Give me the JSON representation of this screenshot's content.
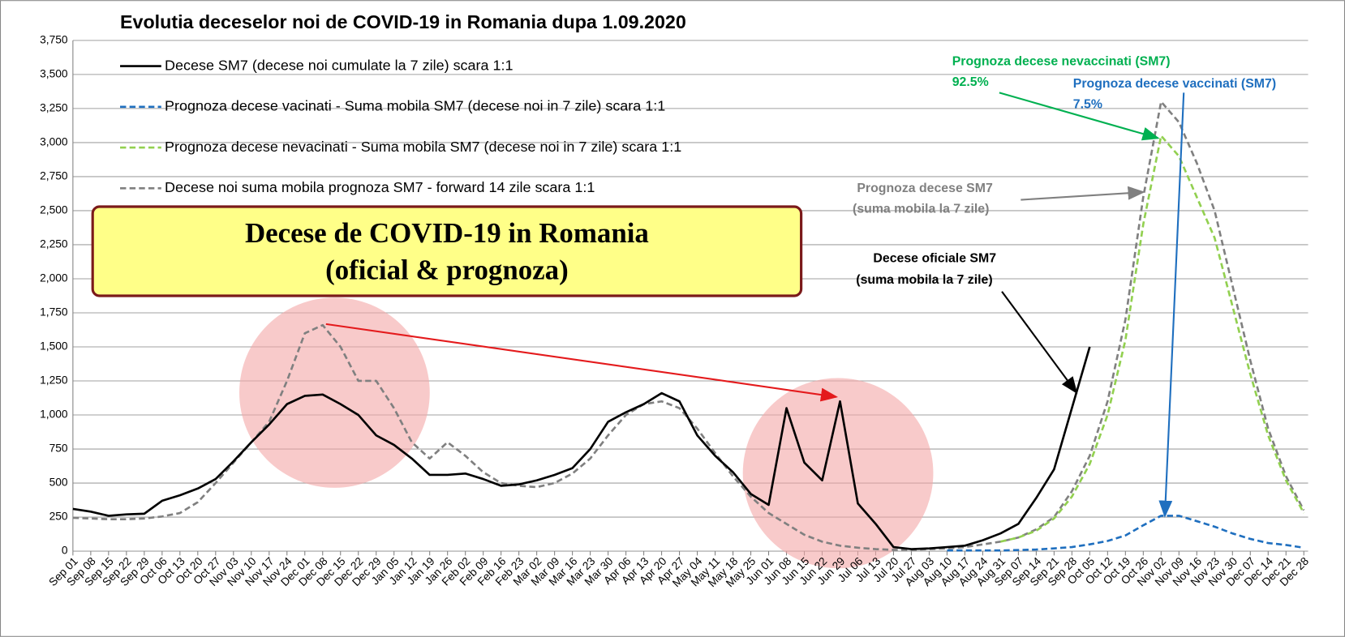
{
  "chart_data": {
    "type": "line",
    "title": "Evolutia deceselor noi de COVID-19 in Romania dupa 1.09.2020",
    "box_text": [
      "Decese de COVID-19 in Romania",
      "(oficial & prognoza)"
    ],
    "annotations": [
      "Prognoza decese nevaccinati (SM7)",
      "92.5%",
      "Prognoza decese vaccinati (SM7)",
      "7.5%",
      "Prognoza decese SM7",
      "(suma mobila la 7 zile)",
      "Decese oficiale SM7",
      "(suma mobila la 7 zile)"
    ],
    "categories": [
      "Sep 01",
      "Sep 08",
      "Sep 15",
      "Sep 22",
      "Sep 29",
      "Oct 06",
      "Oct 13",
      "Oct 20",
      "Oct 27",
      "Nov 03",
      "Nov 10",
      "Nov 17",
      "Nov 24",
      "Dec 01",
      "Dec 08",
      "Dec 15",
      "Dec 22",
      "Dec 29",
      "Jan 05",
      "Jan 12",
      "Jan 19",
      "Jan 26",
      "Feb 02",
      "Feb 09",
      "Feb 16",
      "Feb 23",
      "Mar 02",
      "Mar 09",
      "Mar 16",
      "Mar 23",
      "Mar 30",
      "Apr 06",
      "Apr 13",
      "Apr 20",
      "Apr 27",
      "May 04",
      "May 11",
      "May 18",
      "May 25",
      "Jun 01",
      "Jun 08",
      "Jun 15",
      "Jun 22",
      "Jun 29",
      "Jul 06",
      "Jul 13",
      "Jul 20",
      "Jul 27",
      "Aug 03",
      "Aug 10",
      "Aug 17",
      "Aug 24",
      "Aug 31",
      "Sep 07",
      "Sep 14",
      "Sep 21",
      "Sep 28",
      "Oct 05",
      "Oct 12",
      "Oct 19",
      "Oct 26",
      "Nov 02",
      "Nov 09",
      "Nov 16",
      "Nov 23",
      "Nov 30",
      "Dec 07",
      "Dec 14",
      "Dec 21",
      "Dec 28"
    ],
    "series": [
      {
        "name": "Decese SM7 (decese noi cumulate la 7 zile) scara 1:1",
        "color": "#000000",
        "dash": false,
        "values": [
          310,
          290,
          260,
          270,
          275,
          370,
          410,
          460,
          530,
          660,
          800,
          930,
          1080,
          1140,
          1150,
          1080,
          1000,
          850,
          780,
          680,
          560,
          560,
          570,
          530,
          480,
          490,
          520,
          560,
          610,
          750,
          950,
          1020,
          1080,
          1160,
          1100,
          850,
          700,
          580,
          420,
          340,
          1050,
          650,
          520,
          1100,
          350,
          200,
          30,
          15,
          20,
          30,
          40,
          80,
          130,
          200,
          390,
          600,
          1050,
          1500,
          null,
          null,
          null,
          null,
          null,
          null,
          null,
          null,
          null,
          null,
          null,
          null
        ]
      },
      {
        "name": "Prognoza decese vacinati - Suma mobila SM7 (decese noi in 7 zile) scara 1:1",
        "color": "#1f6fbf",
        "dash": true,
        "values": [
          null,
          null,
          null,
          null,
          null,
          null,
          null,
          null,
          null,
          null,
          null,
          null,
          null,
          null,
          null,
          null,
          null,
          null,
          null,
          null,
          null,
          null,
          null,
          null,
          null,
          null,
          null,
          null,
          null,
          null,
          null,
          null,
          null,
          null,
          null,
          null,
          null,
          null,
          null,
          null,
          null,
          null,
          null,
          null,
          null,
          null,
          null,
          null,
          null,
          5,
          5,
          5,
          5,
          8,
          12,
          20,
          30,
          50,
          75,
          115,
          190,
          260,
          260,
          220,
          180,
          130,
          90,
          60,
          45,
          25
        ]
      },
      {
        "name": "Prognoza decese nevacinati - Suma mobila SM7 (decese noi in 7 zile) scara 1:1",
        "color": "#92d050",
        "dash": true,
        "values": [
          null,
          null,
          null,
          null,
          null,
          null,
          null,
          null,
          null,
          null,
          null,
          null,
          null,
          null,
          null,
          null,
          null,
          null,
          null,
          null,
          null,
          null,
          null,
          null,
          null,
          null,
          null,
          null,
          null,
          null,
          null,
          null,
          null,
          null,
          null,
          null,
          null,
          null,
          null,
          null,
          null,
          null,
          null,
          null,
          null,
          null,
          null,
          null,
          null,
          null,
          null,
          null,
          70,
          100,
          150,
          240,
          400,
          640,
          1000,
          1550,
          2400,
          3050,
          2900,
          2600,
          2300,
          1800,
          1300,
          850,
          520,
          280
        ]
      },
      {
        "name": "Decese noi suma mobila prognoza SM7 - forward 14 zile scara 1:1",
        "color": "#808080",
        "dash": true,
        "values": [
          245,
          240,
          235,
          235,
          240,
          255,
          280,
          360,
          500,
          650,
          800,
          950,
          1250,
          1600,
          1660,
          1500,
          1250,
          1250,
          1050,
          800,
          680,
          800,
          700,
          580,
          500,
          480,
          470,
          500,
          570,
          680,
          850,
          1000,
          1080,
          1100,
          1050,
          900,
          720,
          550,
          400,
          280,
          200,
          120,
          70,
          40,
          25,
          15,
          10,
          10,
          15,
          20,
          30,
          50,
          70,
          100,
          160,
          250,
          440,
          700,
          1100,
          1700,
          2600,
          3300,
          3150,
          2850,
          2500,
          1950,
          1400,
          900,
          550,
          300
        ]
      }
    ],
    "ylim": [
      0,
      3750
    ],
    "yticks": [
      0,
      250,
      500,
      750,
      {
        "value": 1000,
        "label": "1,000"
      },
      {
        "value": 1250,
        "label": "1,250"
      },
      {
        "value": 1500,
        "label": "1,500"
      },
      {
        "value": 1750,
        "label": "1,750"
      },
      {
        "value": 2000,
        "label": "2,000"
      },
      {
        "value": 2250,
        "label": "2,250"
      },
      {
        "value": 2500,
        "label": "2,500"
      },
      {
        "value": 2750,
        "label": "2,750"
      },
      {
        "value": 3000,
        "label": "3,000"
      },
      {
        "value": 3250,
        "label": "3,250"
      },
      {
        "value": 3500,
        "label": "3,500"
      },
      {
        "value": 3750,
        "label": "3,750"
      }
    ],
    "grid": true
  }
}
